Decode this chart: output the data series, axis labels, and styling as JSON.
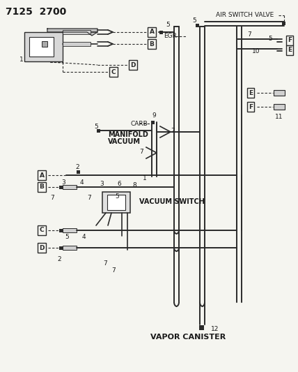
{
  "title": "7125  2700",
  "bg_color": "#f5f5f0",
  "line_color": "#2a2a2a",
  "text_color": "#1a1a1a",
  "labels": {
    "air_switch_valve": "AIR SWITCH VALVE",
    "egr": "EGR",
    "carb": "CARB",
    "manifold_vacuum_1": "MANIFOLD",
    "manifold_vacuum_2": "VACUUM",
    "vacuum_switch": "VACUUM SWITCH",
    "vapor_canister": "VAPOR CANISTER"
  },
  "figsize": [
    4.28,
    5.33
  ],
  "dpi": 100
}
